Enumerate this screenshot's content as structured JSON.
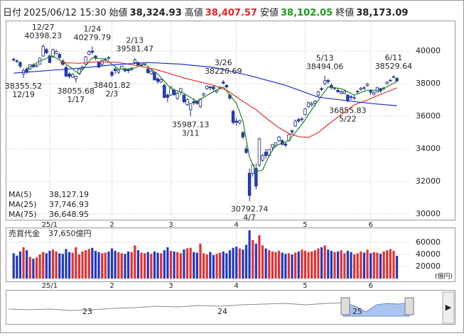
{
  "chart_data": {
    "type": "candlestick",
    "header": [
      {
        "name": "日付",
        "value": "2025/06/12 15:30",
        "color": "#222"
      },
      {
        "name": "始値",
        "value": "38,324.93",
        "color": "#222"
      },
      {
        "name": "高値",
        "value": "38,407.57",
        "color": "#e0252a"
      },
      {
        "name": "安値",
        "value": "38,102.05",
        "color": "#1a9a1a"
      },
      {
        "name": "終値",
        "value": "38,173.09",
        "color": "#222"
      }
    ],
    "xlim": [
      -2,
      121
    ],
    "xticks": [
      {
        "value": 11,
        "label": "25/1"
      },
      {
        "value": 30,
        "label": "2"
      },
      {
        "value": 48,
        "label": "3"
      },
      {
        "value": 68,
        "label": "4"
      },
      {
        "value": 89,
        "label": "5"
      },
      {
        "value": 109,
        "label": "6"
      }
    ],
    "ylim": [
      29650,
      41830
    ],
    "yticks": [
      30000,
      32000,
      34000,
      36000,
      38000,
      40000
    ],
    "grid": true,
    "up_color": "#ffffff",
    "down_color": "#2040c8",
    "outline_color": "#1a2a80",
    "candles": {
      "open": [
        39500,
        39400,
        39300,
        38600,
        38900,
        38900,
        39150,
        39050,
        39200,
        39700,
        40100,
        39700,
        39650,
        39850,
        39800,
        39400,
        39000,
        38600,
        38400,
        38300,
        38600,
        38900,
        39200,
        39800,
        40000,
        39700,
        39300,
        39200,
        39450,
        39600,
        38700,
        38900,
        38700,
        38900,
        38900,
        38900,
        38850,
        39300,
        39300,
        39100,
        39200,
        38900,
        38600,
        38700,
        38300,
        38100,
        37900,
        37300,
        37300,
        37600,
        37100,
        37500,
        37300,
        36700,
        36400,
        36900,
        36900,
        36600,
        37300,
        37700,
        37800,
        37800,
        37500,
        37700,
        38100,
        37900,
        37300,
        36300,
        35700,
        35600,
        35000,
        34000,
        32500,
        32500,
        32800,
        33000,
        33300,
        33800,
        33600,
        34100,
        34200,
        34500,
        34500,
        34300,
        34500,
        35100,
        35400,
        35800,
        35800,
        36100,
        36600,
        36700,
        36800,
        37300,
        37700,
        38000,
        38200,
        37900,
        37700,
        37600,
        37400,
        37400,
        37300,
        37200,
        37100,
        37500,
        37650,
        37750,
        37900,
        37600,
        37350,
        37500,
        37700,
        37700,
        38000,
        38200,
        38400,
        38324.93
      ],
      "high": [
        39600,
        39500,
        39380,
        38950,
        39000,
        39200,
        39250,
        39200,
        39600,
        40398.23,
        40200,
        39800,
        40150,
        40100,
        39900,
        39500,
        39100,
        38700,
        38650,
        38500,
        38950,
        39100,
        39700,
        40050,
        40279.79,
        39750,
        39350,
        39450,
        39600,
        39700,
        38800,
        39000,
        38900,
        39100,
        39000,
        38950,
        39000,
        39581.47,
        39350,
        39250,
        39300,
        38950,
        38850,
        38750,
        38400,
        38300,
        38000,
        37400,
        37850,
        37700,
        37500,
        37750,
        37350,
        37100,
        36800,
        37100,
        37000,
        37100,
        37450,
        37900,
        37850,
        37900,
        37650,
        37850,
        38220.69,
        37950,
        37350,
        36400,
        35900,
        35800,
        35100,
        34200,
        32800,
        33100,
        33100,
        34700,
        33700,
        34000,
        34000,
        34300,
        34400,
        34800,
        34600,
        34400,
        34900,
        35200,
        35800,
        35900,
        35950,
        36500,
        36900,
        36900,
        37000,
        37550,
        37800,
        38494.06,
        38300,
        38000,
        37800,
        37700,
        37600,
        37650,
        37350,
        37300,
        37300,
        37600,
        37800,
        37850,
        38050,
        37650,
        37550,
        37800,
        37750,
        37800,
        38150,
        38300,
        38529.64,
        38407.57
      ],
      "low": [
        39350,
        39280,
        38950,
        38355.52,
        38600,
        38850,
        38950,
        39000,
        39180,
        39650,
        39800,
        39250,
        39600,
        39800,
        39500,
        39100,
        38400,
        38300,
        38350,
        38055.68,
        38550,
        38850,
        39150,
        39750,
        39800,
        39450,
        38950,
        39100,
        39400,
        39450,
        38401.82,
        38600,
        38600,
        38850,
        38700,
        38650,
        38800,
        39250,
        39050,
        39050,
        39100,
        38600,
        38550,
        38200,
        38000,
        38050,
        37100,
        36850,
        37250,
        37250,
        37000,
        37300,
        36800,
        36650,
        35987.13,
        36700,
        36700,
        36500,
        37200,
        37600,
        37600,
        37550,
        37400,
        37650,
        37950,
        37700,
        37000,
        35500,
        35400,
        35500,
        34600,
        33700,
        30792.74,
        32300,
        31500,
        32900,
        33200,
        33400,
        33500,
        33900,
        34100,
        34400,
        34200,
        34100,
        34450,
        34900,
        35350,
        35600,
        35650,
        36050,
        36500,
        36600,
        36600,
        37200,
        37550,
        37900,
        38000,
        37650,
        37600,
        37450,
        37350,
        37350,
        36855.83,
        37000,
        37000,
        37400,
        37550,
        37600,
        37800,
        37300,
        37250,
        37450,
        37450,
        37600,
        37950,
        38100,
        38350,
        38102.05
      ],
      "close": [
        39460,
        39360,
        39080,
        38810,
        38700,
        39160,
        39040,
        39130,
        39570,
        40280,
        39890,
        39300,
        40080,
        39980,
        39600,
        39190,
        38470,
        38440,
        38570,
        38450,
        38900,
        39030,
        39650,
        39960,
        39930,
        39560,
        39020,
        39410,
        39510,
        39570,
        38520,
        38800,
        38830,
        39070,
        38790,
        38800,
        38960,
        39460,
        39150,
        39170,
        39270,
        38680,
        38780,
        38230,
        38140,
        38250,
        37160,
        37160,
        37790,
        37330,
        37420,
        37700,
        36890,
        37030,
        36790,
        36820,
        36790,
        37050,
        37400,
        37850,
        37750,
        37680,
        37600,
        37780,
        38030,
        37800,
        37120,
        35620,
        35620,
        35730,
        34730,
        33780,
        31140,
        33010,
        31710,
        34610,
        33590,
        33590,
        33980,
        34270,
        34380,
        34730,
        34280,
        34220,
        34870,
        35040,
        35700,
        35710,
        35840,
        36450,
        36830,
        36780,
        36930,
        37500,
        37640,
        38180,
        38130,
        37750,
        37750,
        37500,
        37500,
        37530,
        36990,
        37160,
        37160,
        37530,
        37720,
        37720,
        37970,
        37470,
        37450,
        37750,
        37550,
        37740,
        38090,
        38210,
        38420,
        38173.09
      ]
    },
    "moving_averages": [
      {
        "name": "MA(5)",
        "value_label": "38,127.19",
        "color": "#1a8a1a",
        "x": [
          4,
          8,
          12,
          16,
          20,
          24,
          28,
          32,
          36,
          40,
          44,
          48,
          52,
          56,
          60,
          64,
          68,
          70,
          72,
          74,
          76,
          78,
          80,
          84,
          88,
          92,
          96,
          100,
          104,
          108,
          112,
          117
        ],
        "values": [
          38900,
          39400,
          39700,
          39200,
          38600,
          39600,
          39500,
          38900,
          38900,
          39200,
          38600,
          37700,
          37400,
          36900,
          37400,
          37800,
          36800,
          35700,
          33500,
          32600,
          32700,
          33600,
          34200,
          34500,
          35500,
          36700,
          37800,
          37700,
          37300,
          37600,
          37600,
          38127.19
        ]
      },
      {
        "name": "MA(25)",
        "value_label": "37,746.93",
        "color": "#e0302a",
        "x": [
          14,
          20,
          26,
          32,
          38,
          43,
          48,
          52,
          57,
          61,
          65,
          69,
          74,
          78,
          81,
          84,
          87,
          90,
          93,
          96,
          100,
          104,
          108,
          111,
          114,
          117
        ],
        "values": [
          39300,
          39250,
          39350,
          39300,
          39100,
          38900,
          38600,
          38350,
          38100,
          37900,
          37600,
          37050,
          36400,
          35740,
          35300,
          34950,
          34750,
          34700,
          35000,
          35500,
          36100,
          36700,
          37000,
          37260,
          37500,
          37746.93
        ]
      },
      {
        "name": "MA(75)",
        "value_label": "36,648.95",
        "color": "#2030d0",
        "x": [
          0,
          10,
          20,
          30,
          41,
          51,
          61,
          72,
          83,
          93,
          104,
          111,
          117
        ],
        "values": [
          38650,
          38800,
          38950,
          39150,
          39300,
          39200,
          39000,
          38500,
          37900,
          37170,
          36900,
          36750,
          36648.95
        ]
      }
    ],
    "annotations": [
      {
        "date": "12/27",
        "value": 40398.23,
        "x": 9,
        "side": "above"
      },
      {
        "date": "12/19",
        "value": 38355.52,
        "x": 3,
        "side": "below"
      },
      {
        "date": "1/24",
        "value": 40279.79,
        "x": 24,
        "side": "above"
      },
      {
        "date": "1/17",
        "value": 38055.68,
        "x": 19,
        "side": "below"
      },
      {
        "date": "2/3",
        "value": 38401.82,
        "x": 30,
        "side": "below"
      },
      {
        "date": "2/13",
        "value": 39581.47,
        "x": 37,
        "side": "above"
      },
      {
        "date": "3/11",
        "value": 35987.13,
        "x": 54,
        "side": "below"
      },
      {
        "date": "3/26",
        "value": 38220.69,
        "x": 64,
        "side": "above"
      },
      {
        "date": "4/7",
        "value": 30792.74,
        "x": 72,
        "side": "below"
      },
      {
        "date": "5/13",
        "value": 38494.06,
        "x": 95,
        "side": "above"
      },
      {
        "date": "5/22",
        "value": 36855.83,
        "x": 102,
        "side": "below"
      },
      {
        "date": "6/11",
        "value": 38529.64,
        "x": 116,
        "side": "above"
      }
    ],
    "volume": {
      "name": "売買代金",
      "value_label": "37,650億円",
      "unit": "(億円)",
      "up_color": "#e03232",
      "down_color": "#2038c0",
      "ylim": [
        0,
        83500
      ],
      "yticks": [
        20000,
        40000,
        60000
      ],
      "values": [
        42000,
        38000,
        45000,
        52000,
        47000,
        36000,
        33000,
        35000,
        40000,
        44000,
        42000,
        46000,
        48000,
        45000,
        42000,
        41000,
        49000,
        44000,
        43000,
        52000,
        40000,
        45000,
        47000,
        49000,
        51000,
        46000,
        44000,
        42000,
        43000,
        45000,
        50000,
        46000,
        44000,
        42000,
        41000,
        45000,
        44000,
        55000,
        47000,
        43000,
        42000,
        44000,
        41000,
        45000,
        43000,
        42000,
        47000,
        52000,
        46000,
        45000,
        44000,
        42000,
        48000,
        50000,
        51000,
        44000,
        43000,
        58000,
        42000,
        40000,
        44000,
        39000,
        41000,
        43000,
        45000,
        42000,
        47000,
        51000,
        53000,
        50000,
        48000,
        56000,
        80000,
        64000,
        58000,
        72000,
        55000,
        50000,
        47000,
        45000,
        44000,
        46000,
        43000,
        41000,
        42000,
        40000,
        43000,
        45000,
        48000,
        46000,
        44000,
        45000,
        47000,
        50000,
        52000,
        55000,
        48000,
        46000,
        44000,
        45000,
        47000,
        42000,
        46000,
        44000,
        40000,
        42000,
        45000,
        43000,
        48000,
        42000,
        44000,
        43000,
        41000,
        45000,
        47000,
        49000,
        46000,
        37650
      ]
    },
    "navigator": {
      "labels": [
        "23",
        "24",
        "25"
      ]
    }
  }
}
